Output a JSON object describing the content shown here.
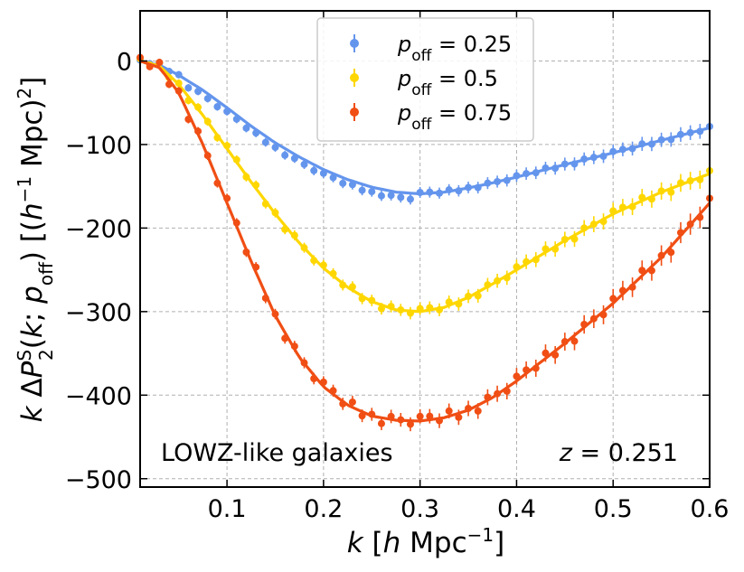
{
  "chart_data": {
    "type": "line",
    "title": "",
    "xlabel": "k [h Mpc^-1]",
    "ylabel": "k ΔP_2^S(k; p_off) [(h^-1 Mpc)^2]",
    "xlim": [
      0.01,
      0.6
    ],
    "ylim": [
      -510,
      60
    ],
    "x_ticks": [
      0.1,
      0.2,
      0.3,
      0.4,
      0.5,
      0.6
    ],
    "x_tick_labels": [
      "0.1",
      "0.2",
      "0.3",
      "0.4",
      "0.5",
      "0.6"
    ],
    "y_ticks": [
      0,
      -100,
      -200,
      -300,
      -400,
      -500
    ],
    "y_tick_labels": [
      "0",
      "−100",
      "−200",
      "−300",
      "−400",
      "−500"
    ],
    "grid": true,
    "legend_position": "top-center",
    "annotations": {
      "sample": "LOWZ-like galaxies",
      "redshift": "z = 0.251"
    },
    "series": [
      {
        "name": "p_off = 0.25",
        "legend_math": "p",
        "legend_sub": "off",
        "legend_value": "= 0.25",
        "color": "#6495ED",
        "model": {
          "x": [
            0.01,
            0.03,
            0.05,
            0.075,
            0.1,
            0.125,
            0.15,
            0.175,
            0.2,
            0.225,
            0.25,
            0.275,
            0.3,
            0.325,
            0.35,
            0.375,
            0.4,
            0.45,
            0.5,
            0.55,
            0.6
          ],
          "y": [
            0,
            -5,
            -17,
            -35,
            -56,
            -78,
            -98,
            -115,
            -130,
            -142,
            -151,
            -157,
            -159,
            -157,
            -152,
            -146,
            -139,
            -124,
            -110,
            -95,
            -80
          ]
        }
      },
      {
        "name": "p_off = 0.5",
        "legend_math": "p",
        "legend_sub": "off",
        "legend_value": "= 0.5",
        "color": "#FFD700",
        "model": {
          "x": [
            0.01,
            0.03,
            0.05,
            0.075,
            0.1,
            0.125,
            0.15,
            0.175,
            0.2,
            0.225,
            0.25,
            0.275,
            0.3,
            0.325,
            0.35,
            0.375,
            0.4,
            0.45,
            0.5,
            0.55,
            0.6
          ],
          "y": [
            0,
            -6,
            -28,
            -65,
            -105,
            -145,
            -183,
            -218,
            -248,
            -271,
            -288,
            -298,
            -300,
            -295,
            -283,
            -267,
            -250,
            -215,
            -183,
            -157,
            -135
          ]
        }
      },
      {
        "name": "p_off = 0.75",
        "legend_math": "p",
        "legend_sub": "off",
        "legend_value": "= 0.75",
        "color": "#F04E14",
        "model": {
          "x": [
            0.01,
            0.03,
            0.05,
            0.075,
            0.1,
            0.125,
            0.15,
            0.175,
            0.2,
            0.225,
            0.25,
            0.275,
            0.3,
            0.325,
            0.35,
            0.375,
            0.4,
            0.45,
            0.5,
            0.55,
            0.6
          ],
          "y": [
            0,
            -8,
            -38,
            -100,
            -170,
            -240,
            -305,
            -355,
            -390,
            -412,
            -425,
            -430,
            -431,
            -427,
            -418,
            -403,
            -383,
            -338,
            -290,
            -235,
            -170
          ]
        }
      }
    ]
  }
}
